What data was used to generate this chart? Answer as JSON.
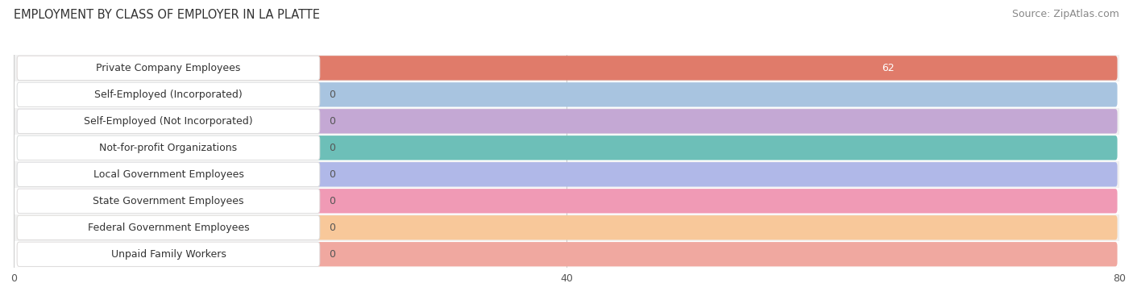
{
  "title": "EMPLOYMENT BY CLASS OF EMPLOYER IN LA PLATTE",
  "source": "Source: ZipAtlas.com",
  "categories": [
    "Private Company Employees",
    "Self-Employed (Incorporated)",
    "Self-Employed (Not Incorporated)",
    "Not-for-profit Organizations",
    "Local Government Employees",
    "State Government Employees",
    "Federal Government Employees",
    "Unpaid Family Workers"
  ],
  "values": [
    62,
    0,
    0,
    0,
    0,
    0,
    0,
    0
  ],
  "bar_colors": [
    "#e07b6a",
    "#a8c4e0",
    "#c4a8d4",
    "#6dbfb8",
    "#b0b8e8",
    "#f09ab5",
    "#f8c89a",
    "#f0a8a0"
  ],
  "bar_bg_color": "#e8e8e8",
  "label_box_bg": "#ffffff",
  "label_box_edge_color": "#dddddd",
  "value_color_on_bar": "#ffffff",
  "value_color_off_bar": "#555555",
  "xlim": [
    0,
    80
  ],
  "xticks": [
    0,
    40,
    80
  ],
  "title_fontsize": 10.5,
  "source_fontsize": 9,
  "label_fontsize": 9,
  "value_fontsize": 9,
  "background_color": "#ffffff",
  "grid_color": "#cccccc",
  "bar_height": 0.62,
  "row_bg_colors": [
    "#f2f2f2",
    "#ffffff"
  ]
}
